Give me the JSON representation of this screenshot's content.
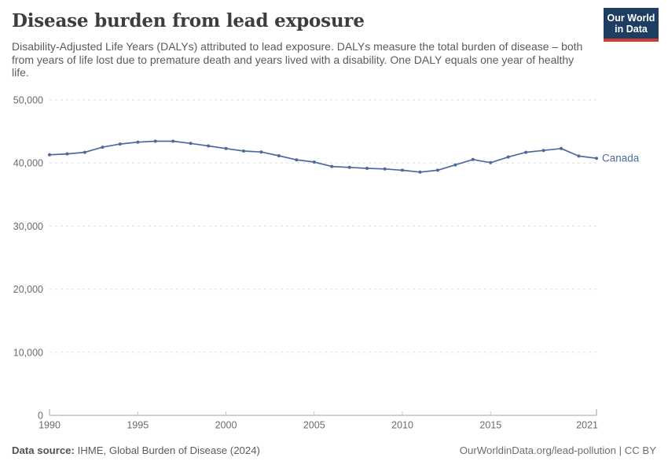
{
  "header": {
    "title": "Disease burden from lead exposure",
    "subtitle": "Disability-Adjusted Life Years (DALYs) attributed to lead exposure. DALYs measure the total burden of disease – both from years of life lost due to premature death and years lived with a disability. One DALY equals one year of healthy life.",
    "logo": {
      "line1": "Our World",
      "line2": "in Data",
      "bg_color": "#1d3d63",
      "accent_color": "#cf3b32"
    }
  },
  "chart_data": {
    "type": "line",
    "title": "Disease burden from lead exposure",
    "xlabel": "",
    "ylabel": "",
    "x": [
      1990,
      1991,
      1992,
      1993,
      1994,
      1995,
      1996,
      1997,
      1998,
      1999,
      2000,
      2001,
      2002,
      2003,
      2004,
      2005,
      2006,
      2007,
      2008,
      2009,
      2010,
      2011,
      2012,
      2013,
      2014,
      2015,
      2016,
      2017,
      2018,
      2019,
      2020,
      2021
    ],
    "series": [
      {
        "name": "Canada",
        "color": "#4c6a9c",
        "values": [
          41300,
          41450,
          41700,
          42500,
          43000,
          43300,
          43450,
          43450,
          43100,
          42700,
          42300,
          41900,
          41750,
          41150,
          40500,
          40150,
          39450,
          39300,
          39150,
          39050,
          38850,
          38550,
          38850,
          39700,
          40550,
          40050,
          40950,
          41700,
          42000,
          42300,
          41100,
          40750
        ]
      }
    ],
    "ylim": [
      0,
      50000
    ],
    "xlim": [
      1990,
      2021
    ],
    "ytick_values": [
      0,
      10000,
      20000,
      30000,
      40000,
      50000
    ],
    "ytick_labels": [
      "0",
      "10,000",
      "20,000",
      "30,000",
      "40,000",
      "50,000"
    ],
    "xtick_values": [
      1990,
      1995,
      2000,
      2005,
      2010,
      2015,
      2021
    ],
    "xtick_labels": [
      "1990",
      "1995",
      "2000",
      "2005",
      "2010",
      "2015",
      "2021"
    ],
    "grid": "horizontal-dashed",
    "legend_position": "end-of-line",
    "axis_color": "#a3a3a3",
    "gridline_color": "#dedede",
    "tick_label_color": "#6b6b6b"
  },
  "footer": {
    "source_label": "Data source:",
    "source_text": "IHME, Global Burden of Disease (2024)",
    "credit": "OurWorldinData.org/lead-pollution | CC BY"
  }
}
